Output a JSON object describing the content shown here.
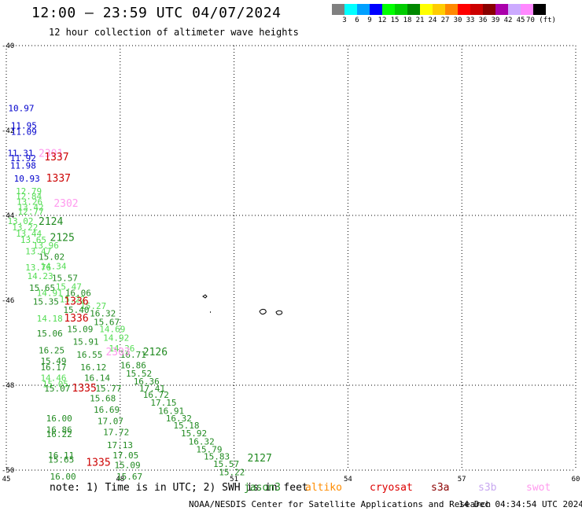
{
  "title": "12:00 – 23:59 UTC 04/07/2024",
  "subtitle": "12 hour collection of altimeter wave heights",
  "legend": {
    "colors": [
      "#808080",
      "#00ffff",
      "#00a0ff",
      "#0000ff",
      "#00ff00",
      "#00cc00",
      "#008800",
      "#ffff00",
      "#ffcc00",
      "#ff8800",
      "#ff0000",
      "#cc0000",
      "#880000",
      "#aa00aa",
      "#ccaaff",
      "#ff88ff",
      "#000000"
    ],
    "labels": [
      "3",
      "6",
      "9",
      "12",
      "15",
      "18",
      "21",
      "24",
      "27",
      "30",
      "33",
      "36",
      "39",
      "42",
      "45",
      "70 (ft)"
    ]
  },
  "axes": {
    "x_ticks": [
      "45",
      "48",
      "51",
      "54",
      "57",
      "60"
    ],
    "y_ticks": [
      "-40",
      "-42",
      "-44",
      "-46",
      "-48",
      "-50"
    ]
  },
  "satellites": [
    {
      "name": "jason3",
      "color": "#228b22"
    },
    {
      "name": "altiko",
      "color": "#ff8c00"
    },
    {
      "name": "cryosat",
      "color": "#dd0000"
    },
    {
      "name": "s3a",
      "color": "#8b0000"
    },
    {
      "name": "s3b",
      "color": "#c8a8f0"
    },
    {
      "name": "swot",
      "color": "#ff99ee"
    }
  ],
  "note": "note: 1) Time is in UTC; 2) SWH is in feet",
  "credit": "NOAA/NESDIS Center for Satellite Applications and Research",
  "credit_time": "14 Dec 04:34:54 UTC 2024",
  "pass_labels": [
    {
      "text": "2301",
      "color": "#ff99ee",
      "lon": 45.85,
      "lat": -42.62
    },
    {
      "text": "1337",
      "color": "#cc0000",
      "lon": 46.0,
      "lat": -42.7
    },
    {
      "text": "1337",
      "color": "#cc0000",
      "lon": 46.05,
      "lat": -43.2
    },
    {
      "text": "2302",
      "color": "#ff99ee",
      "lon": 46.25,
      "lat": -43.8
    },
    {
      "text": "2124",
      "color": "#228b22",
      "lon": 45.85,
      "lat": -44.22
    },
    {
      "text": "2125",
      "color": "#228b22",
      "lon": 46.15,
      "lat": -44.6
    },
    {
      "text": "1336",
      "color": "#cc0000",
      "lon": 46.52,
      "lat": -46.1
    },
    {
      "text": "1336",
      "color": "#cc0000",
      "lon": 46.52,
      "lat": -46.5
    },
    {
      "text": "2303",
      "color": "#ff99ee",
      "lon": 47.62,
      "lat": -47.3
    },
    {
      "text": "2126",
      "color": "#228b22",
      "lon": 48.6,
      "lat": -47.3
    },
    {
      "text": "1335",
      "color": "#cc0000",
      "lon": 46.73,
      "lat": -48.15
    },
    {
      "text": "1335",
      "color": "#cc0000",
      "lon": 47.1,
      "lat": -49.9
    },
    {
      "text": "2127",
      "color": "#228b22",
      "lon": 51.35,
      "lat": -49.8
    }
  ],
  "swh_values": [
    {
      "text": "10.97",
      "color": "#0000cc",
      "lon": 45.05,
      "lat": -41.55
    },
    {
      "text": "11.95",
      "color": "#0000cc",
      "lon": 45.12,
      "lat": -41.95
    },
    {
      "text": "11.09",
      "color": "#0000cc",
      "lon": 45.12,
      "lat": -42.1
    },
    {
      "text": "11.31",
      "color": "#0000cc",
      "lon": 45.03,
      "lat": -42.6
    },
    {
      "text": "11.92",
      "color": "#0000cc",
      "lon": 45.1,
      "lat": -42.72
    },
    {
      "text": "11.98",
      "color": "#0000cc",
      "lon": 45.1,
      "lat": -42.9
    },
    {
      "text": "10.93",
      "color": "#0000cc",
      "lon": 45.2,
      "lat": -43.2
    },
    {
      "text": "12.79",
      "color": "#55dd55",
      "lon": 45.25,
      "lat": -43.5
    },
    {
      "text": "12.84",
      "color": "#55dd55",
      "lon": 45.25,
      "lat": -43.62
    },
    {
      "text": "13.26",
      "color": "#55dd55",
      "lon": 45.27,
      "lat": -43.75
    },
    {
      "text": "13.42",
      "color": "#55dd55",
      "lon": 45.3,
      "lat": -43.88
    },
    {
      "text": "12.77",
      "color": "#55dd55",
      "lon": 45.3,
      "lat": -43.98
    },
    {
      "text": "13.02",
      "color": "#55dd55",
      "lon": 45.03,
      "lat": -44.2
    },
    {
      "text": "13.22",
      "color": "#55dd55",
      "lon": 45.15,
      "lat": -44.35
    },
    {
      "text": "13.44",
      "color": "#55dd55",
      "lon": 45.25,
      "lat": -44.5
    },
    {
      "text": "13.65",
      "color": "#55dd55",
      "lon": 45.37,
      "lat": -44.65
    },
    {
      "text": "13.96",
      "color": "#55dd55",
      "lon": 45.7,
      "lat": -44.78
    },
    {
      "text": "13.47",
      "color": "#55dd55",
      "lon": 45.5,
      "lat": -44.92
    },
    {
      "text": "15.02",
      "color": "#228b22",
      "lon": 45.85,
      "lat": -45.05
    },
    {
      "text": "13.76",
      "color": "#55dd55",
      "lon": 45.5,
      "lat": -45.3
    },
    {
      "text": "14.34",
      "color": "#55dd55",
      "lon": 45.9,
      "lat": -45.27
    },
    {
      "text": "14.23",
      "color": "#55dd55",
      "lon": 45.55,
      "lat": -45.5
    },
    {
      "text": "15.57",
      "color": "#228b22",
      "lon": 46.2,
      "lat": -45.55
    },
    {
      "text": "15.65",
      "color": "#228b22",
      "lon": 45.6,
      "lat": -45.78
    },
    {
      "text": "15.47",
      "color": "#55dd55",
      "lon": 46.3,
      "lat": -45.75
    },
    {
      "text": "14.91",
      "color": "#55dd55",
      "lon": 45.8,
      "lat": -45.9
    },
    {
      "text": "16.06",
      "color": "#228b22",
      "lon": 46.55,
      "lat": -45.9
    },
    {
      "text": "15.35",
      "color": "#228b22",
      "lon": 45.7,
      "lat": -46.1
    },
    {
      "text": "15.22",
      "color": "#55dd55",
      "lon": 46.4,
      "lat": -46.05
    },
    {
      "text": "15.27",
      "color": "#55dd55",
      "lon": 46.95,
      "lat": -46.2
    },
    {
      "text": "15.40",
      "color": "#228b22",
      "lon": 46.5,
      "lat": -46.3
    },
    {
      "text": "16.32",
      "color": "#228b22",
      "lon": 47.2,
      "lat": -46.38
    },
    {
      "text": "14.18",
      "color": "#55dd55",
      "lon": 45.8,
      "lat": -46.5
    },
    {
      "text": "15.67",
      "color": "#228b22",
      "lon": 47.3,
      "lat": -46.58
    },
    {
      "text": "15.09",
      "color": "#228b22",
      "lon": 46.6,
      "lat": -46.75
    },
    {
      "text": "14.69",
      "color": "#55dd55",
      "lon": 47.45,
      "lat": -46.75
    },
    {
      "text": "15.06",
      "color": "#228b22",
      "lon": 45.8,
      "lat": -46.85
    },
    {
      "text": "14.92",
      "color": "#55dd55",
      "lon": 47.55,
      "lat": -46.95
    },
    {
      "text": "15.91",
      "color": "#228b22",
      "lon": 46.75,
      "lat": -47.05
    },
    {
      "text": "16.25",
      "color": "#228b22",
      "lon": 45.85,
      "lat": -47.25
    },
    {
      "text": "14.36",
      "color": "#55dd55",
      "lon": 47.7,
      "lat": -47.2
    },
    {
      "text": "16.55",
      "color": "#228b22",
      "lon": 46.85,
      "lat": -47.35
    },
    {
      "text": "16.71",
      "color": "#228b22",
      "lon": 48.0,
      "lat": -47.35
    },
    {
      "text": "15.49",
      "color": "#228b22",
      "lon": 45.9,
      "lat": -47.5
    },
    {
      "text": "16.86",
      "color": "#228b22",
      "lon": 48.0,
      "lat": -47.6
    },
    {
      "text": "16.17",
      "color": "#228b22",
      "lon": 45.9,
      "lat": -47.65
    },
    {
      "text": "16.12",
      "color": "#228b22",
      "lon": 46.95,
      "lat": -47.65
    },
    {
      "text": "15.52",
      "color": "#228b22",
      "lon": 48.15,
      "lat": -47.8
    },
    {
      "text": "14.46",
      "color": "#55dd55",
      "lon": 45.9,
      "lat": -47.9
    },
    {
      "text": "16.14",
      "color": "#228b22",
      "lon": 47.05,
      "lat": -47.9
    },
    {
      "text": "16.36",
      "color": "#228b22",
      "lon": 48.35,
      "lat": -47.98
    },
    {
      "text": "15.05",
      "color": "#55dd55",
      "lon": 45.95,
      "lat": -48.05
    },
    {
      "text": "15.77",
      "color": "#228b22",
      "lon": 47.35,
      "lat": -48.15
    },
    {
      "text": "15.07",
      "color": "#228b22",
      "lon": 46.0,
      "lat": -48.15
    },
    {
      "text": "17.41",
      "color": "#228b22",
      "lon": 48.5,
      "lat": -48.15
    },
    {
      "text": "16.72",
      "color": "#228b22",
      "lon": 48.6,
      "lat": -48.3
    },
    {
      "text": "15.68",
      "color": "#228b22",
      "lon": 47.2,
      "lat": -48.38
    },
    {
      "text": "17.15",
      "color": "#228b22",
      "lon": 48.8,
      "lat": -48.48
    },
    {
      "text": "16.69",
      "color": "#228b22",
      "lon": 47.3,
      "lat": -48.65
    },
    {
      "text": "16.91",
      "color": "#228b22",
      "lon": 49.0,
      "lat": -48.68
    },
    {
      "text": "16.00",
      "color": "#228b22",
      "lon": 46.05,
      "lat": -48.85
    },
    {
      "text": "16.32",
      "color": "#228b22",
      "lon": 49.2,
      "lat": -48.85
    },
    {
      "text": "17.07",
      "color": "#228b22",
      "lon": 47.4,
      "lat": -48.92
    },
    {
      "text": "16.86",
      "color": "#228b22",
      "lon": 46.05,
      "lat": -49.12
    },
    {
      "text": "15.18",
      "color": "#228b22",
      "lon": 49.4,
      "lat": -49.02
    },
    {
      "text": "16.22",
      "color": "#228b22",
      "lon": 46.05,
      "lat": -49.22
    },
    {
      "text": "17.72",
      "color": "#228b22",
      "lon": 47.55,
      "lat": -49.18
    },
    {
      "text": "15.92",
      "color": "#228b22",
      "lon": 49.6,
      "lat": -49.2
    },
    {
      "text": "17.13",
      "color": "#228b22",
      "lon": 47.65,
      "lat": -49.48
    },
    {
      "text": "16.32",
      "color": "#228b22",
      "lon": 49.8,
      "lat": -49.4
    },
    {
      "text": "15.79",
      "color": "#228b22",
      "lon": 50.0,
      "lat": -49.58
    },
    {
      "text": "16.11",
      "color": "#228b22",
      "lon": 46.1,
      "lat": -49.72
    },
    {
      "text": "17.05",
      "color": "#228b22",
      "lon": 47.8,
      "lat": -49.72
    },
    {
      "text": "15.83",
      "color": "#228b22",
      "lon": 50.2,
      "lat": -49.75
    },
    {
      "text": "15.65",
      "color": "#228b22",
      "lon": 46.1,
      "lat": -49.82
    },
    {
      "text": "15.09",
      "color": "#228b22",
      "lon": 47.85,
      "lat": -49.95
    },
    {
      "text": "15.57",
      "color": "#228b22",
      "lon": 50.45,
      "lat": -49.93
    },
    {
      "text": "16.00",
      "color": "#228b22",
      "lon": 46.15,
      "lat": -50.22
    },
    {
      "text": "15.22",
      "color": "#228b22",
      "lon": 50.6,
      "lat": -50.12
    },
    {
      "text": "15.67",
      "color": "#228b22",
      "lon": 47.9,
      "lat": -50.22
    }
  ]
}
